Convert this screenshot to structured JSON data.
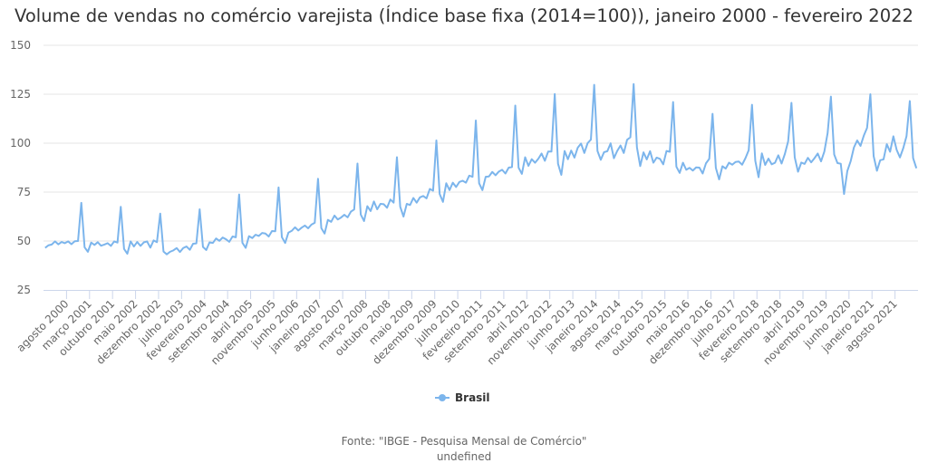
{
  "chart_data": {
    "type": "line",
    "title": "Volume de vendas no comércio varejista (Índice base fixa (2014=100)), janeiro 2000 - fevereiro 2022",
    "xlabel": "",
    "ylabel": "",
    "ylim": [
      25,
      150
    ],
    "y_ticks": [
      25,
      50,
      75,
      100,
      125,
      150
    ],
    "grid": true,
    "legend_placement": "bottom",
    "x_tick_labels": [
      "agosto 2000",
      "março 2001",
      "outubro 2001",
      "maio 2002",
      "dezembro 2002",
      "julho 2003",
      "fevereiro 2004",
      "setembro 2004",
      "abril 2005",
      "novembro 2005",
      "junho 2006",
      "janeiro 2007",
      "agosto 2007",
      "março 2008",
      "outubro 2008",
      "maio 2009",
      "dezembro 2009",
      "julho 2010",
      "fevereiro 2011",
      "setembro 2011",
      "abril 2012",
      "novembro 2012",
      "junho 2013",
      "janeiro 2014",
      "agosto 2014",
      "março 2015",
      "outubro 2015",
      "maio 2016",
      "dezembro 2016",
      "julho 2017",
      "fevereiro 2018",
      "setembro 2018",
      "abril 2019",
      "novembro 2019",
      "junho 2020",
      "janeiro 2021",
      "agosto 2021"
    ],
    "series": [
      {
        "name": "Brasil",
        "color": "#7cb5ec",
        "values": [
          46.5,
          47.8,
          48.2,
          49.8,
          48.3,
          49.5,
          48.9,
          49.8,
          48.4,
          49.9,
          50.0,
          69.5,
          46.8,
          44.5,
          49.2,
          48.0,
          49.4,
          47.6,
          48.2,
          48.9,
          47.5,
          49.8,
          49.2,
          67.5,
          46.0,
          43.5,
          49.8,
          47.2,
          49.5,
          47.5,
          49.3,
          49.8,
          46.6,
          50.3,
          49.4,
          64.0,
          44.6,
          43.2,
          44.5,
          45.2,
          46.4,
          44.4,
          46.4,
          47.2,
          45.5,
          48.6,
          48.8,
          66.2,
          47.0,
          45.4,
          49.3,
          49.0,
          51.3,
          50.1,
          51.8,
          50.9,
          49.6,
          52.3,
          51.9,
          73.8,
          49.1,
          46.5,
          52.5,
          51.5,
          53.2,
          52.6,
          54.1,
          53.8,
          52.3,
          55.1,
          55.0,
          77.4,
          52.0,
          49.0,
          54.3,
          55.2,
          57.0,
          55.4,
          56.8,
          57.9,
          56.5,
          58.4,
          59.3,
          81.8,
          56.6,
          53.8,
          60.8,
          59.8,
          63.0,
          61.0,
          62.0,
          63.4,
          62.1,
          65.0,
          66.1,
          89.6,
          63.5,
          60.2,
          67.8,
          65.3,
          70.2,
          66.2,
          69.0,
          68.8,
          67.0,
          71.2,
          69.6,
          92.8,
          67.5,
          62.5,
          69.0,
          68.4,
          72.0,
          69.6,
          72.3,
          73.0,
          71.8,
          76.6,
          75.7,
          101.4,
          74.0,
          70.0,
          79.5,
          76.0,
          79.8,
          77.6,
          80.2,
          80.8,
          79.8,
          83.4,
          82.8,
          111.6,
          79.5,
          76.0,
          82.8,
          83.0,
          85.3,
          83.6,
          85.5,
          86.4,
          84.5,
          87.5,
          87.8,
          119.2,
          87.5,
          84.3,
          92.8,
          88.4,
          91.8,
          90.0,
          92.0,
          94.7,
          91.0,
          95.7,
          95.7,
          125.1,
          89.5,
          83.8,
          96.0,
          91.8,
          96.2,
          92.6,
          97.7,
          99.8,
          95.0,
          100.0,
          101.8,
          129.8,
          96.0,
          91.5,
          95.4,
          95.9,
          99.9,
          92.3,
          96.0,
          98.8,
          95.0,
          101.7,
          103.0,
          130.2,
          97.9,
          88.3,
          95.3,
          91.7,
          95.9,
          90.0,
          92.6,
          92.0,
          89.2,
          96.0,
          95.6,
          121.0,
          88.0,
          84.8,
          90.0,
          86.4,
          87.4,
          86.0,
          87.6,
          87.5,
          84.5,
          89.7,
          92.0,
          115.0,
          87.4,
          81.5,
          88.2,
          87.0,
          90.0,
          89.0,
          90.4,
          90.6,
          89.0,
          92.3,
          96.4,
          119.6,
          91.0,
          82.6,
          94.8,
          88.9,
          92.1,
          89.2,
          90.0,
          93.8,
          89.6,
          94.5,
          101.0,
          120.6,
          92.7,
          85.4,
          90.1,
          89.4,
          92.5,
          90.2,
          92.3,
          94.7,
          90.7,
          95.7,
          105.1,
          123.8,
          94.2,
          89.8,
          89.5,
          74.0,
          85.8,
          90.7,
          97.8,
          101.4,
          98.6,
          103.8,
          107.8,
          125.0,
          93.4,
          85.9,
          91.3,
          91.7,
          99.5,
          95.6,
          103.5,
          96.6,
          92.7,
          97.4,
          103.6,
          121.5,
          92.4,
          87.2
        ]
      }
    ]
  },
  "legend": {
    "label": "Brasil"
  },
  "source": {
    "line1": "Fonte: \"IBGE - Pesquisa Mensal de Comércio\"",
    "line2": "undefined"
  }
}
